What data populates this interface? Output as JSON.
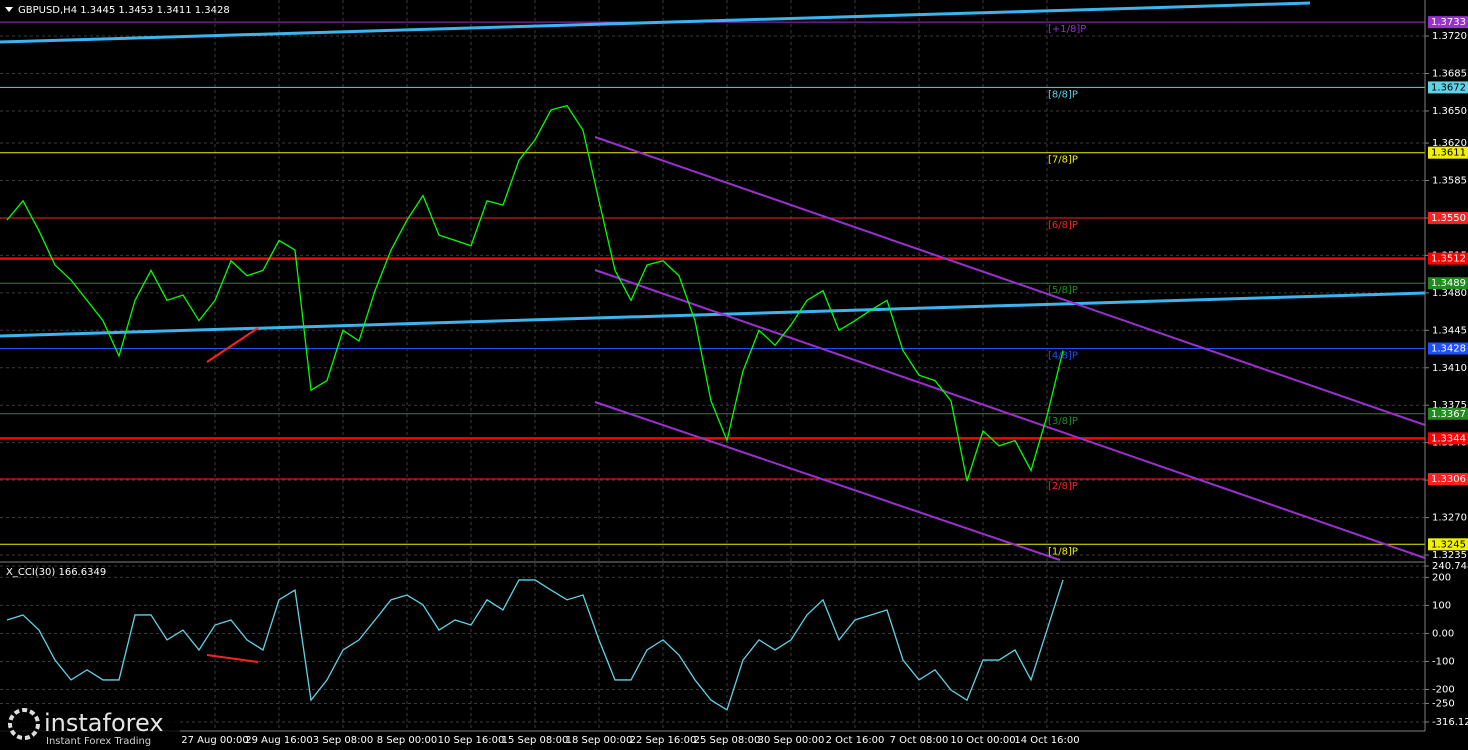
{
  "chart_data": [
    {
      "type": "line",
      "title": "GBPUSD,H4  1.3445 1.3453 1.3411 1.3428",
      "categories": [
        null,
        null,
        null,
        null,
        null,
        null,
        null,
        null,
        null,
        null,
        null,
        null,
        null,
        "27 Aug 00:00",
        null,
        null,
        null,
        "29 Aug 16:00",
        null,
        null,
        null,
        "3 Sep 08:00",
        null,
        null,
        null,
        "8 Sep 00:00",
        null,
        null,
        null,
        "10 Sep 16:00",
        null,
        null,
        null,
        "15 Sep 08:00",
        null,
        null,
        null,
        "18 Sep 00:00",
        null,
        null,
        null,
        "22 Sep 16:00",
        null,
        null,
        null,
        "25 Sep 08:00",
        null,
        null,
        null,
        "30 Sep 00:00",
        null,
        null,
        null,
        "2 Oct 16:00",
        null,
        null,
        null,
        "7 Oct 08:00",
        null,
        null,
        null,
        "10 Oct 00:00",
        null,
        null,
        null,
        "14 Oct 16:00",
        null
      ],
      "series": [
        {
          "color": "#00ff00",
          "values": [
            1.3548,
            1.3566,
            1.3538,
            1.3506,
            1.3492,
            1.3473,
            1.3454,
            1.3421,
            1.3473,
            1.3501,
            1.3473,
            1.3478,
            1.3454,
            1.3473,
            1.351,
            1.3496,
            1.3501,
            1.3529,
            1.352,
            1.3389,
            1.3398,
            1.3445,
            1.3435,
            1.3482,
            1.352,
            1.3548,
            1.3571,
            1.3534,
            1.3529,
            1.3524,
            1.3566,
            1.3562,
            1.3604,
            1.3623,
            1.3651,
            1.3655,
            1.3632,
            1.3566,
            1.3501,
            1.3473,
            1.3506,
            1.351,
            1.3496,
            1.3454,
            1.3379,
            1.3342,
            1.3407,
            1.3445,
            1.3431,
            1.345,
            1.3473,
            1.3482,
            1.3445,
            1.3454,
            1.3464,
            1.3473,
            1.3426,
            1.3403,
            1.3398,
            1.3379,
            1.3304,
            1.3351,
            1.3337,
            1.3342,
            1.3314,
            1.3365,
            1.3426
          ]
        }
      ],
      "ylim": [
        1.32294,
        1.37537
      ],
      "yticks": [
        {
          "value": 1.372,
          "label": "1.3720"
        },
        1.3685,
        {
          "value": 1.365,
          "label": "1.3650"
        },
        {
          "value": 1.362,
          "label": "1.3620"
        },
        1.3585,
        {
          "value": 1.355,
          "label": "1.3550"
        },
        1.3515,
        {
          "value": 1.348,
          "label": "1.3480"
        },
        1.3445,
        {
          "value": 1.341,
          "label": "1.3410"
        },
        1.3375,
        {
          "value": 1.334,
          "label": "1.3340"
        },
        1.3305,
        {
          "value": 1.327,
          "label": "1.3270"
        },
        1.3235
      ],
      "grid": true,
      "levels": [
        {
          "name": "[+1/8]P",
          "value": 1.3733,
          "label": "1.3733",
          "color": "#9b30d0"
        },
        {
          "name": "[8/8]P",
          "value": 1.3672,
          "label": "1.3672",
          "color": "#5fd3e6"
        },
        {
          "name": "[7/8]P",
          "value": 1.3611,
          "label": "1.3611",
          "color": "#f0f000"
        },
        {
          "name": "[6/8]P",
          "value": 1.355,
          "label": "1.3550",
          "color": "#ff2020"
        },
        {
          "value": 1.3512,
          "label": "1.3512",
          "color": "#ff0000"
        },
        {
          "name": "[5/8]P",
          "value": 1.3489,
          "label": "1.3489",
          "color": "#1e8c1e"
        },
        {
          "name": "[4/8]P",
          "value": 1.3428,
          "label": "1.3428",
          "color": "#1e50ff"
        },
        {
          "name": "[3/8]P",
          "value": 1.3367,
          "label": "1.3367",
          "color": "#1e8c1e"
        },
        {
          "value": 1.3344,
          "label": "1.3344",
          "color": "#ff0000"
        },
        {
          "name": "[2/8]P",
          "value": 1.3306,
          "label": "1.3306",
          "color": "#ff2020"
        },
        {
          "name": "[1/8]P",
          "value": 1.3245,
          "label": "1.3245",
          "color": "#f0f000"
        }
      ]
    },
    {
      "type": "line",
      "title": "X_CCI(30) 166.6349",
      "series": [
        {
          "color": "#5fd3e6",
          "values": [
            48,
            66,
            12,
            -95,
            -166,
            -130,
            -166,
            -166,
            66,
            66,
            -23,
            12,
            -59,
            30,
            48,
            -23,
            -59,
            120,
            155,
            -238,
            -166,
            -59,
            -23,
            48,
            120,
            137,
            102,
            12,
            48,
            30,
            120,
            84,
            191,
            191,
            155,
            120,
            137,
            -23,
            -166,
            -166,
            -59,
            -23,
            -77,
            -166,
            -238,
            -273,
            -95,
            -23,
            -59,
            -23,
            66,
            120,
            -23,
            48,
            66,
            84,
            -95,
            -166,
            -130,
            -202,
            -238,
            -95,
            -95,
            -59,
            -166,
            12,
            191
          ]
        }
      ],
      "ylim": [
        -316.129,
        240.7484
      ],
      "yticks": [
        240.7484,
        200,
        100,
        {
          "value": 0,
          "label": "0.00"
        },
        -100,
        -200,
        -250,
        -316.129
      ],
      "grid": true
    }
  ],
  "branding": {
    "logo": "instaforex",
    "tagline": "Instant Forex Trading"
  }
}
